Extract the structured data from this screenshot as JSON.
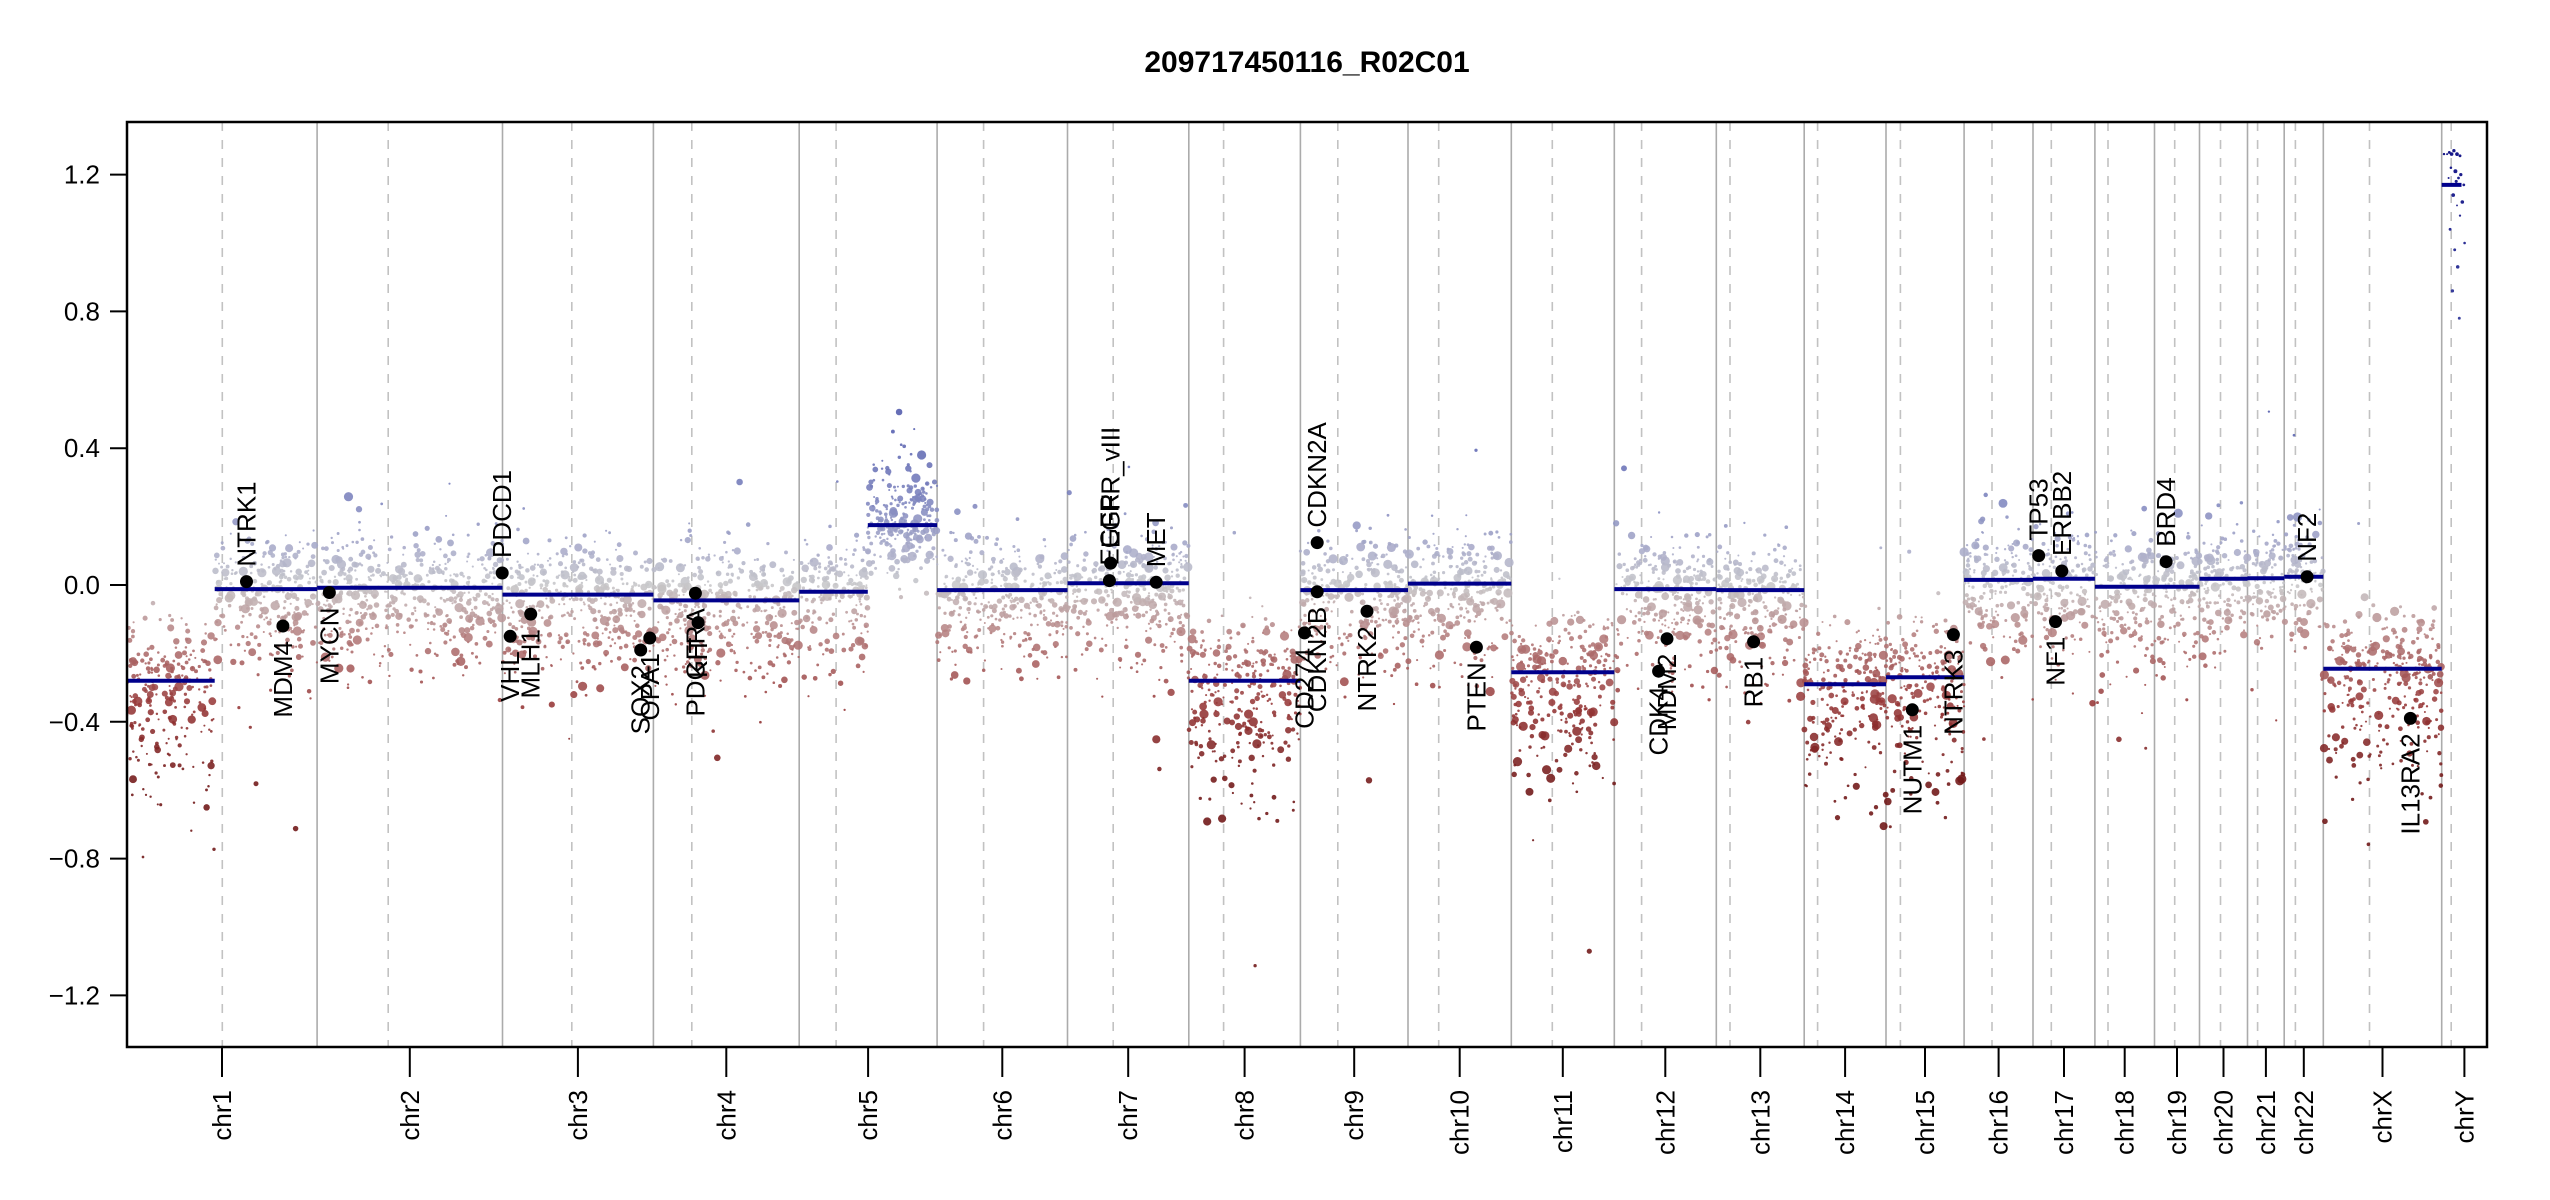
{
  "header": {
    "title": "209717450116_R02C01"
  },
  "chart_data": {
    "type": "scatter",
    "subtype": "genome-wide-copy-number",
    "title": "209717450116_R02C01",
    "xlabel": "",
    "ylabel": "",
    "ylim": [
      -1.35,
      1.35
    ],
    "grid": "chromosome-separators-solid, centromeres-dashed",
    "yticks": [
      {
        "value": 1.2,
        "label": "1.2"
      },
      {
        "value": 0.8,
        "label": "0.8"
      },
      {
        "value": 0.4,
        "label": "0.4"
      },
      {
        "value": 0.0,
        "label": "0.0"
      },
      {
        "value": -0.4,
        "label": "−0.4"
      },
      {
        "value": -0.8,
        "label": "−0.8"
      },
      {
        "value": -1.2,
        "label": "−1.2"
      }
    ],
    "chromosomes": [
      {
        "name": "chr1",
        "length_mb": 249.3,
        "centromere_mb": 125.0,
        "segments": [
          [
            0,
            115,
            -0.28
          ],
          [
            115,
            249.3,
            -0.012
          ]
        ]
      },
      {
        "name": "chr2",
        "length_mb": 243.2,
        "centromere_mb": 93.3,
        "segments": [
          [
            0,
            243.2,
            -0.008
          ]
        ]
      },
      {
        "name": "chr3",
        "length_mb": 198.0,
        "centromere_mb": 91.0,
        "segments": [
          [
            0,
            198,
            -0.028
          ]
        ]
      },
      {
        "name": "chr4",
        "length_mb": 191.2,
        "centromere_mb": 50.4,
        "segments": [
          [
            0,
            191.2,
            -0.045
          ]
        ]
      },
      {
        "name": "chr5",
        "length_mb": 180.9,
        "centromere_mb": 48.4,
        "segments": [
          [
            0,
            90,
            -0.02
          ],
          [
            90,
            180.9,
            0.175
          ]
        ]
      },
      {
        "name": "chr6",
        "length_mb": 171.1,
        "centromere_mb": 61.0,
        "segments": [
          [
            0,
            171.1,
            -0.015
          ]
        ]
      },
      {
        "name": "chr7",
        "length_mb": 159.1,
        "centromere_mb": 59.9,
        "segments": [
          [
            0,
            159.1,
            0.005
          ]
        ]
      },
      {
        "name": "chr8",
        "length_mb": 146.4,
        "centromere_mb": 45.6,
        "segments": [
          [
            0,
            146.4,
            -0.28
          ]
        ]
      },
      {
        "name": "chr9",
        "length_mb": 141.2,
        "centromere_mb": 49.0,
        "segments": [
          [
            0,
            141.2,
            -0.015
          ]
        ]
      },
      {
        "name": "chr10",
        "length_mb": 135.5,
        "centromere_mb": 40.2,
        "segments": [
          [
            0,
            135.5,
            0.004
          ]
        ]
      },
      {
        "name": "chr11",
        "length_mb": 135.0,
        "centromere_mb": 53.7,
        "segments": [
          [
            0,
            135,
            -0.255
          ]
        ]
      },
      {
        "name": "chr12",
        "length_mb": 133.9,
        "centromere_mb": 35.8,
        "segments": [
          [
            0,
            133.9,
            -0.012
          ]
        ]
      },
      {
        "name": "chr13",
        "length_mb": 115.2,
        "centromere_mb": 17.9,
        "segments": [
          [
            0,
            115.2,
            -0.015
          ]
        ]
      },
      {
        "name": "chr14",
        "length_mb": 107.3,
        "centromere_mb": 17.6,
        "segments": [
          [
            0,
            107.3,
            -0.29
          ]
        ]
      },
      {
        "name": "chr15",
        "length_mb": 102.5,
        "centromere_mb": 19.0,
        "segments": [
          [
            0,
            102.5,
            -0.27
          ]
        ]
      },
      {
        "name": "chr16",
        "length_mb": 90.4,
        "centromere_mb": 36.6,
        "segments": [
          [
            0,
            90.4,
            0.015
          ]
        ]
      },
      {
        "name": "chr17",
        "length_mb": 81.2,
        "centromere_mb": 24.0,
        "segments": [
          [
            0,
            81.2,
            0.018
          ]
        ]
      },
      {
        "name": "chr18",
        "length_mb": 78.1,
        "centromere_mb": 17.2,
        "segments": [
          [
            0,
            78.1,
            -0.005
          ]
        ]
      },
      {
        "name": "chr19",
        "length_mb": 59.1,
        "centromere_mb": 26.5,
        "segments": [
          [
            0,
            59.1,
            -0.005
          ]
        ]
      },
      {
        "name": "chr20",
        "length_mb": 63.0,
        "centromere_mb": 27.5,
        "segments": [
          [
            0,
            63,
            0.018
          ]
        ]
      },
      {
        "name": "chr21",
        "length_mb": 48.1,
        "centromere_mb": 13.2,
        "segments": [
          [
            0,
            48.1,
            0.02
          ]
        ]
      },
      {
        "name": "chr22",
        "length_mb": 51.3,
        "centromere_mb": 14.7,
        "segments": [
          [
            0,
            51.3,
            0.024
          ]
        ]
      },
      {
        "name": "chrX",
        "length_mb": 155.3,
        "centromere_mb": 60.6,
        "segments": [
          [
            0,
            155.3,
            -0.245
          ]
        ]
      },
      {
        "name": "chrY",
        "length_mb": 59.4,
        "centromere_mb": 12.5,
        "segments": [
          [
            0,
            26,
            1.17
          ]
        ],
        "sparse_points_mb_value": [
          [
            3,
            1.26
          ],
          [
            7,
            1.26
          ],
          [
            10,
            1.265
          ],
          [
            13,
            1.26
          ],
          [
            16,
            1.27
          ],
          [
            20,
            1.26
          ],
          [
            24,
            1.255
          ],
          [
            12,
            1.22
          ],
          [
            18,
            1.21
          ],
          [
            22,
            1.19
          ],
          [
            25,
            1.2
          ],
          [
            9,
            1.19
          ],
          [
            15,
            1.14
          ],
          [
            20,
            1.11
          ],
          [
            24,
            1.08
          ],
          [
            11,
            1.04
          ],
          [
            17,
            0.98
          ],
          [
            21,
            0.93
          ],
          [
            14,
            0.86
          ],
          [
            23,
            0.78
          ],
          [
            27,
            1.12
          ],
          [
            29,
            1.17
          ],
          [
            19,
            1.18
          ],
          [
            30,
            1.0
          ]
        ]
      }
    ],
    "genes": [
      {
        "name": "NTRK1",
        "chrom": "chr1",
        "pos_mb": 156.8,
        "value": 0.01,
        "label": "above"
      },
      {
        "name": "MDM4",
        "chrom": "chr1",
        "pos_mb": 204.5,
        "value": -0.12,
        "label": "below"
      },
      {
        "name": "MYCN",
        "chrom": "chr2",
        "pos_mb": 16.1,
        "value": -0.022,
        "label": "below"
      },
      {
        "name": "PDCD1",
        "chrom": "chr2",
        "pos_mb": 242.8,
        "value": 0.035,
        "label": "above"
      },
      {
        "name": "VHL",
        "chrom": "chr3",
        "pos_mb": 10.2,
        "value": -0.15,
        "label": "below"
      },
      {
        "name": "MLH1",
        "chrom": "chr3",
        "pos_mb": 37.0,
        "value": -0.085,
        "label": "below"
      },
      {
        "name": "SOX2",
        "chrom": "chr3",
        "pos_mb": 181.4,
        "value": -0.19,
        "label": "below"
      },
      {
        "name": "OPA1",
        "chrom": "chr3",
        "pos_mb": 193.3,
        "value": -0.155,
        "label": "below"
      },
      {
        "name": "PDGFRA",
        "chrom": "chr4",
        "pos_mb": 55.1,
        "value": -0.024,
        "label": "below"
      },
      {
        "name": "KIT",
        "chrom": "chr4",
        "pos_mb": 58.6,
        "value": -0.11,
        "label": "below"
      },
      {
        "name": "EGFR",
        "chrom": "chr7",
        "pos_mb": 55.0,
        "value": 0.013,
        "label": "above"
      },
      {
        "name": "EGFR_vIII",
        "chrom": "chr7",
        "pos_mb": 56.5,
        "value": 0.064,
        "label": "above"
      },
      {
        "name": "MET",
        "chrom": "chr7",
        "pos_mb": 116.3,
        "value": 0.008,
        "label": "above"
      },
      {
        "name": "CD274",
        "chrom": "chr9",
        "pos_mb": 5.4,
        "value": -0.14,
        "label": "below"
      },
      {
        "name": "CDKN2A",
        "chrom": "chr9",
        "pos_mb": 21.97,
        "value": 0.124,
        "label": "above"
      },
      {
        "name": "CDKN2B",
        "chrom": "chr9",
        "pos_mb": 22.0,
        "value": -0.02,
        "label": "below"
      },
      {
        "name": "NTRK2",
        "chrom": "chr9",
        "pos_mb": 87.3,
        "value": -0.077,
        "label": "below"
      },
      {
        "name": "PTEN",
        "chrom": "chr10",
        "pos_mb": 89.6,
        "value": -0.182,
        "label": "below"
      },
      {
        "name": "CDK4",
        "chrom": "chr12",
        "pos_mb": 58.1,
        "value": -0.252,
        "label": "below"
      },
      {
        "name": "MDM2",
        "chrom": "chr12",
        "pos_mb": 69.2,
        "value": -0.157,
        "label": "below"
      },
      {
        "name": "RB1",
        "chrom": "chr13",
        "pos_mb": 48.9,
        "value": -0.166,
        "label": "below"
      },
      {
        "name": "NUTM1",
        "chrom": "chr15",
        "pos_mb": 34.6,
        "value": -0.365,
        "label": "below"
      },
      {
        "name": "NTRK3",
        "chrom": "chr15",
        "pos_mb": 88.4,
        "value": -0.145,
        "label": "below"
      },
      {
        "name": "NF1",
        "chrom": "chr17",
        "pos_mb": 29.5,
        "value": -0.107,
        "label": "below"
      },
      {
        "name": "TP53",
        "chrom": "chr17",
        "pos_mb": 7.5,
        "value": 0.086,
        "label": "above"
      },
      {
        "name": "ERBB2",
        "chrom": "chr17",
        "pos_mb": 37.8,
        "value": 0.041,
        "label": "above"
      },
      {
        "name": "BRD4",
        "chrom": "chr19",
        "pos_mb": 15.3,
        "value": 0.068,
        "label": "above"
      },
      {
        "name": "NF2",
        "chrom": "chr22",
        "pos_mb": 30.0,
        "value": 0.024,
        "label": "above"
      },
      {
        "name": "IL13RA2",
        "chrom": "chrX",
        "pos_mb": 114.2,
        "value": -0.39,
        "label": "below"
      }
    ],
    "colors": {
      "segment_line": "#00008b",
      "gene_dot": "#000000",
      "gene_label": "#000000",
      "point_loss_deep": "#6e1414",
      "point_loss": "#a04444",
      "point_neutral": "#c8c8c8",
      "point_gain": "#5a64af",
      "point_gain_deep": "#14148c",
      "chromosome_separator": "#ababab",
      "centromere_line": "#c2c2c2",
      "axis": "#000000",
      "background": "#ffffff"
    },
    "legend": "none"
  }
}
